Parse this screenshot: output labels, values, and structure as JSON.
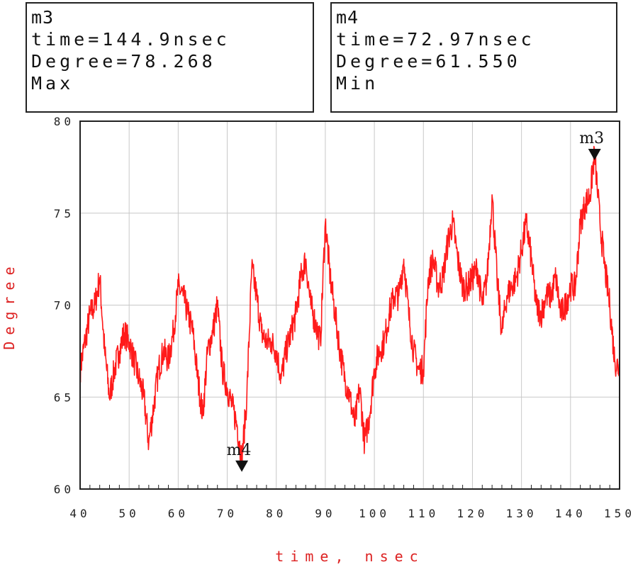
{
  "markers": [
    {
      "name": "m3",
      "time_line": "time=144.9nsec",
      "value_line": "Degree=78.268",
      "kind": "Max"
    },
    {
      "name": "m4",
      "time_line": "time=72.97nsec",
      "value_line": "Degree=61.550",
      "kind": "Min"
    }
  ],
  "colors": {
    "trace": "#ff1a1a",
    "axis_label": "#dd2222",
    "grid": "#c8c8c8",
    "frame": "#222222",
    "marker": "#111111"
  },
  "chart_data": {
    "type": "line",
    "title": "",
    "xlabel": "time, nsec",
    "ylabel": "Degree",
    "xlim": [
      40,
      150
    ],
    "ylim": [
      60,
      80
    ],
    "x_ticks": [
      40,
      50,
      60,
      70,
      80,
      90,
      100,
      110,
      120,
      130,
      140,
      150
    ],
    "y_ticks": [
      60,
      65,
      70,
      75,
      80
    ],
    "grid": true,
    "series": [
      {
        "x": [
          40,
          41,
          42,
          43,
          44,
          45,
          46,
          47,
          48,
          49,
          50,
          51,
          52,
          53,
          54,
          55,
          56,
          57,
          58,
          59,
          60,
          61,
          62,
          63,
          64,
          65,
          66,
          67,
          68,
          69,
          70,
          71,
          72,
          72.97,
          74,
          75,
          76,
          77,
          78,
          79,
          80,
          81,
          82,
          83,
          84,
          85,
          86,
          87,
          88,
          89,
          90,
          91,
          92,
          93,
          94,
          95,
          96,
          97,
          98,
          99,
          100,
          101,
          102,
          103,
          104,
          105,
          106,
          107,
          108,
          109,
          110,
          111,
          112,
          113,
          114,
          115,
          116,
          117,
          118,
          119,
          120,
          121,
          122,
          123,
          124,
          125,
          126,
          127,
          128,
          129,
          130,
          131,
          132,
          133,
          134,
          135,
          136,
          137,
          138,
          139,
          140,
          141,
          142,
          143,
          144,
          144.9,
          146,
          147,
          148,
          149,
          150
        ],
        "y": [
          66.5,
          68.0,
          69.5,
          70.0,
          71.5,
          67.5,
          65.0,
          66.5,
          67.5,
          68.5,
          68.0,
          67.0,
          66.0,
          65.0,
          62.5,
          64.5,
          66.5,
          67.5,
          67.0,
          68.5,
          71.0,
          70.5,
          69.5,
          68.5,
          66.0,
          64.0,
          67.5,
          68.5,
          70.0,
          66.5,
          65.5,
          64.5,
          63.5,
          61.55,
          65.0,
          72.0,
          70.5,
          68.5,
          68.0,
          68.0,
          67.5,
          66.0,
          67.5,
          68.5,
          69.5,
          71.5,
          72.5,
          70.0,
          69.0,
          68.0,
          74.5,
          71.5,
          69.5,
          67.5,
          66.0,
          65.0,
          63.5,
          65.5,
          62.5,
          64.0,
          66.5,
          67.5,
          68.0,
          69.5,
          70.5,
          70.5,
          72.5,
          69.5,
          67.5,
          66.5,
          66.5,
          71.5,
          72.5,
          71.0,
          71.5,
          73.5,
          74.5,
          72.5,
          71.0,
          71.0,
          71.5,
          72.0,
          70.0,
          71.5,
          76.0,
          71.5,
          68.5,
          70.5,
          71.0,
          71.5,
          73.0,
          74.5,
          72.5,
          70.0,
          69.5,
          70.5,
          70.5,
          71.5,
          69.5,
          70.0,
          71.0,
          71.0,
          74.5,
          75.5,
          76.0,
          78.27,
          74.5,
          72.0,
          70.0,
          67.0,
          66.5
        ]
      }
    ],
    "annotations": [
      {
        "name": "m3",
        "x": 144.9,
        "y": 78.268
      },
      {
        "name": "m4",
        "x": 72.97,
        "y": 61.55
      }
    ]
  }
}
